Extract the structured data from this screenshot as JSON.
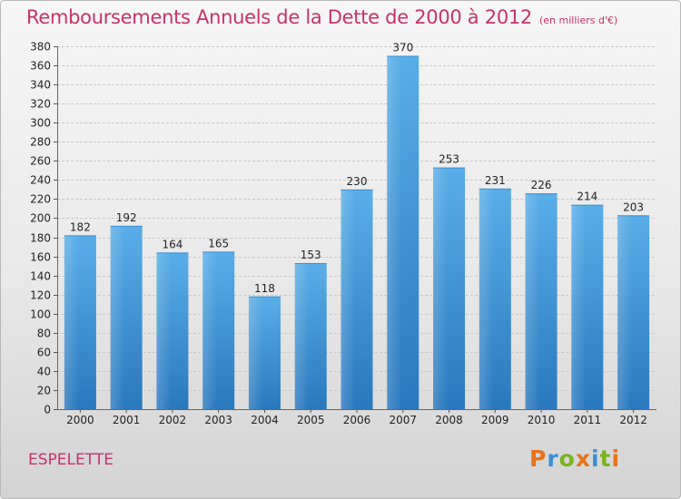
{
  "header": {
    "title": "Remboursements Annuels de la Dette de 2000 à 2012",
    "subtitle": "(en milliers d'€)"
  },
  "footer": {
    "city": "ESPELETTE",
    "logo": "Proxiti",
    "logo_colors": [
      "#e8731a",
      "#3a8fd6",
      "#7ab51d",
      "#e8731a",
      "#3a8fd6",
      "#7ab51d",
      "#e8731a"
    ]
  },
  "chart_data": {
    "type": "bar",
    "categories": [
      "2000",
      "2001",
      "2002",
      "2003",
      "2004",
      "2005",
      "2006",
      "2007",
      "2008",
      "2009",
      "2010",
      "2011",
      "2012"
    ],
    "values": [
      182,
      192,
      164,
      165,
      118,
      153,
      230,
      370,
      253,
      231,
      226,
      214,
      203
    ],
    "title": "Remboursements Annuels de la Dette de 2000 à 2012",
    "xlabel": "",
    "ylabel": "",
    "ylim": [
      0,
      380
    ],
    "ytick_step": 20,
    "grid": true,
    "bar_color_top": "#5aaee8",
    "bar_color_bottom": "#2a78bd"
  }
}
